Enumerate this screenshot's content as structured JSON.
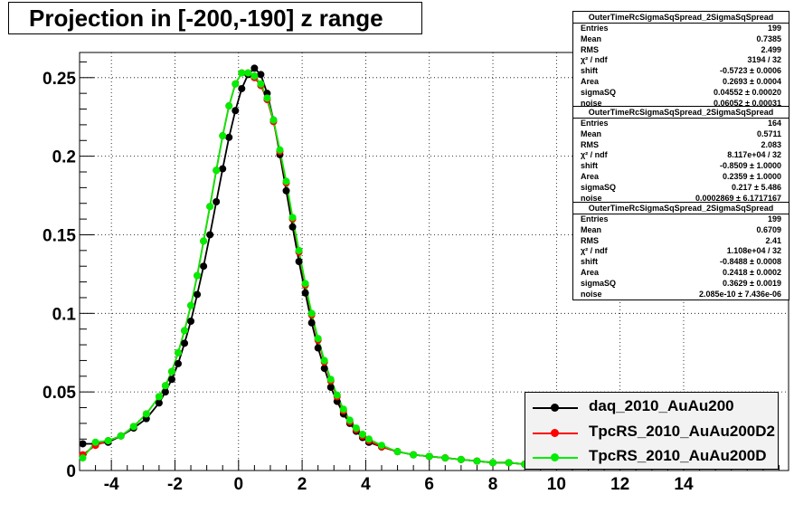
{
  "title": "Projection in [-200,-190] z range",
  "chart_data": {
    "type": "scatter",
    "xlim": [
      -5,
      17.3
    ],
    "ylim": [
      0,
      0.266
    ],
    "x_ticks": [
      -4,
      -2,
      0,
      2,
      4,
      6,
      8,
      10,
      12,
      14
    ],
    "y_ticks": [
      0,
      0.05,
      0.1,
      0.15,
      0.2,
      0.25
    ],
    "y_tick_labels": [
      "0",
      "0.05",
      "0.1",
      "0.15",
      "0.2",
      "0.25"
    ],
    "grid": true,
    "series": [
      {
        "name": "daq_2010_AuAu200",
        "color": "#000000",
        "x": [
          -4.9,
          -4.5,
          -4.1,
          -3.7,
          -3.3,
          -2.9,
          -2.5,
          -2.3,
          -2.1,
          -1.9,
          -1.7,
          -1.5,
          -1.3,
          -1.1,
          -0.9,
          -0.7,
          -0.5,
          -0.3,
          -0.1,
          0.1,
          0.3,
          0.5,
          0.7,
          0.9,
          1.1,
          1.3,
          1.5,
          1.7,
          1.9,
          2.1,
          2.3,
          2.5,
          2.7,
          2.9,
          3.1,
          3.3,
          3.5,
          3.7,
          3.9,
          4.1,
          4.5,
          5.0,
          5.5,
          6.0,
          6.5,
          7.0,
          7.5,
          8.0,
          8.5,
          9.0
        ],
        "y": [
          0.017,
          0.017,
          0.018,
          0.022,
          0.027,
          0.033,
          0.043,
          0.05,
          0.058,
          0.068,
          0.081,
          0.095,
          0.112,
          0.13,
          0.15,
          0.171,
          0.192,
          0.212,
          0.229,
          0.243,
          0.252,
          0.256,
          0.252,
          0.24,
          0.223,
          0.201,
          0.178,
          0.155,
          0.133,
          0.113,
          0.094,
          0.078,
          0.065,
          0.053,
          0.044,
          0.036,
          0.03,
          0.025,
          0.021,
          0.018,
          0.015,
          0.012,
          0.01,
          0.009,
          0.008,
          0.007,
          0.006,
          0.005,
          0.005,
          0.004
        ],
        "fit": true
      },
      {
        "name": "TpcRS_2010_AuAu200D2",
        "color": "#ff0000",
        "x": [
          -4.9,
          -4.5,
          -4.1,
          -3.7,
          -3.3,
          -2.9,
          -2.5,
          -2.3,
          -2.1,
          -1.9,
          -1.7,
          -1.5,
          -1.3,
          -1.1,
          -0.9,
          -0.7,
          -0.5,
          -0.3,
          -0.1,
          0.1,
          0.3,
          0.5,
          0.7,
          0.9,
          1.1,
          1.3,
          1.5,
          1.7,
          1.9,
          2.1,
          2.3,
          2.5,
          2.7,
          2.9,
          3.1,
          3.3,
          3.5,
          3.7,
          3.9,
          4.1,
          4.5,
          5.0,
          5.5,
          6.0,
          6.5,
          7.0,
          7.5,
          8.0,
          8.5,
          9.0
        ],
        "y": [
          0.01,
          0.016,
          0.019,
          0.022,
          0.028,
          0.036,
          0.047,
          0.054,
          0.063,
          0.075,
          0.089,
          0.105,
          0.124,
          0.146,
          0.168,
          0.191,
          0.213,
          0.232,
          0.246,
          0.253,
          0.253,
          0.25,
          0.245,
          0.236,
          0.222,
          0.203,
          0.183,
          0.16,
          0.139,
          0.118,
          0.099,
          0.083,
          0.069,
          0.057,
          0.047,
          0.038,
          0.031,
          0.026,
          0.022,
          0.019,
          0.015,
          0.012,
          0.01,
          0.009,
          0.008,
          0.007,
          0.006,
          0.005,
          0.005,
          0.004
        ],
        "fit": true
      },
      {
        "name": "TpcRS_2010_AuAu200D",
        "color": "#00ee00",
        "x": [
          -4.9,
          -4.5,
          -4.1,
          -3.7,
          -3.3,
          -2.9,
          -2.5,
          -2.3,
          -2.1,
          -1.9,
          -1.7,
          -1.5,
          -1.3,
          -1.1,
          -0.9,
          -0.7,
          -0.5,
          -0.3,
          -0.1,
          0.1,
          0.3,
          0.5,
          0.7,
          0.9,
          1.1,
          1.3,
          1.5,
          1.7,
          1.9,
          2.1,
          2.3,
          2.5,
          2.7,
          2.9,
          3.1,
          3.3,
          3.5,
          3.7,
          3.9,
          4.1,
          4.5,
          5.0,
          5.5,
          6.0,
          6.5,
          7.0,
          7.5,
          8.0,
          8.5,
          9.0
        ],
        "y": [
          0.008,
          0.018,
          0.019,
          0.022,
          0.028,
          0.036,
          0.047,
          0.054,
          0.063,
          0.075,
          0.089,
          0.105,
          0.124,
          0.146,
          0.168,
          0.191,
          0.213,
          0.232,
          0.246,
          0.253,
          0.253,
          0.251,
          0.246,
          0.237,
          0.223,
          0.204,
          0.184,
          0.161,
          0.14,
          0.119,
          0.1,
          0.084,
          0.07,
          0.058,
          0.048,
          0.039,
          0.032,
          0.027,
          0.023,
          0.02,
          0.016,
          0.012,
          0.01,
          0.009,
          0.008,
          0.007,
          0.006,
          0.005,
          0.005,
          0.004
        ],
        "fit": true
      }
    ],
    "legend_position": "bottom-right"
  },
  "stats_boxes": [
    {
      "header": "OuterTimeRcSigmaSqSpread_2SigmaSqSpread",
      "rows": [
        [
          "Entries",
          "199"
        ],
        [
          "Mean",
          "0.7385"
        ],
        [
          "RMS",
          "2.499"
        ],
        [
          "χ² / ndf",
          "3194 / 32"
        ],
        [
          "shift",
          "-0.5723 ± 0.0006"
        ],
        [
          "Area",
          "0.2693 ± 0.0004"
        ],
        [
          "sigmaSQ",
          "0.04552 ± 0.00020"
        ],
        [
          "noise",
          "0.06052 ± 0.00031"
        ]
      ]
    },
    {
      "header": "OuterTimeRcSigmaSqSpread_2SigmaSqSpread",
      "rows": [
        [
          "Entries",
          "164"
        ],
        [
          "Mean",
          "0.5711"
        ],
        [
          "RMS",
          "2.083"
        ],
        [
          "χ² / ndf",
          "8.117e+04 / 32"
        ],
        [
          "shift",
          "-0.8509 ± 1.0000"
        ],
        [
          "Area",
          "0.2359 ± 1.0000"
        ],
        [
          "sigmaSQ",
          "0.217 ± 5.486"
        ],
        [
          "noise",
          "0.0002869 ± 6.1717167"
        ]
      ]
    },
    {
      "header": "OuterTimeRcSigmaSqSpread_2SigmaSqSpread",
      "rows": [
        [
          "Entries",
          "199"
        ],
        [
          "Mean",
          "0.6709"
        ],
        [
          "RMS",
          "2.41"
        ],
        [
          "χ² / ndf",
          "1.108e+04 / 32"
        ],
        [
          "shift",
          "-0.8488 ± 0.0008"
        ],
        [
          "Area",
          "0.2418 ± 0.0002"
        ],
        [
          "sigmaSQ",
          "0.3629 ± 0.0019"
        ],
        [
          "noise",
          "2.085e-10 ± 7.436e-06"
        ]
      ]
    }
  ]
}
